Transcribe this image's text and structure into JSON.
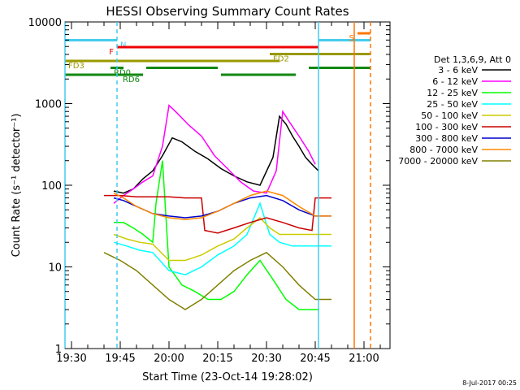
{
  "chart_data": {
    "type": "line",
    "title": "HESSI Observing Summary Count Rates",
    "xlabel": "Start Time (23-Oct-14 19:28:02)",
    "ylabel": "Count Rate (s⁻¹ detector⁻¹)",
    "y_scale": "log",
    "ylim": [
      1,
      10000
    ],
    "xlim": [
      "19:28",
      "21:08"
    ],
    "x_ticks": [
      "19:30",
      "19:45",
      "20:00",
      "20:15",
      "20:30",
      "20:45",
      "21:00"
    ],
    "y_ticks": [
      "1",
      "10",
      "100",
      "1000",
      "10000"
    ],
    "grid": false,
    "legend_position": "right",
    "legend_title": "Det 1,3,6,9, Att 0",
    "footer": "8-Jul-2017 00:25",
    "series": [
      {
        "name": "3 - 6 keV",
        "color": "#000000",
        "x": [
          "19:43",
          "19:46",
          "19:49",
          "19:52",
          "19:55",
          "19:58",
          "20:01",
          "20:04",
          "20:08",
          "20:12",
          "20:16",
          "20:20",
          "20:24",
          "20:28",
          "20:32",
          "20:34",
          "20:36",
          "20:38",
          "20:40",
          "20:42",
          "20:44",
          "20:46"
        ],
        "values": [
          85,
          80,
          90,
          120,
          150,
          230,
          380,
          340,
          260,
          210,
          160,
          130,
          110,
          100,
          220,
          700,
          560,
          400,
          300,
          220,
          180,
          150
        ]
      },
      {
        "name": "6 - 12 keV",
        "color": "#ff00ff",
        "x": [
          "19:43",
          "19:46",
          "19:49",
          "19:52",
          "19:55",
          "19:58",
          "20:00",
          "20:02",
          "20:06",
          "20:10",
          "20:14",
          "20:18",
          "20:22",
          "20:26",
          "20:30",
          "20:33",
          "20:35",
          "20:37",
          "20:40",
          "20:43",
          "20:45"
        ],
        "values": [
          60,
          75,
          90,
          110,
          130,
          300,
          950,
          800,
          550,
          400,
          230,
          160,
          110,
          85,
          80,
          150,
          800,
          600,
          400,
          260,
          180
        ]
      },
      {
        "name": "12 - 25 keV",
        "color": "#00ff00",
        "x": [
          "19:43",
          "19:46",
          "19:49",
          "19:52",
          "19:55",
          "19:56",
          "19:58",
          "20:00",
          "20:04",
          "20:08",
          "20:12",
          "20:16",
          "20:20",
          "20:24",
          "20:28",
          "20:32",
          "20:36",
          "20:40",
          "20:44",
          "20:46"
        ],
        "values": [
          35,
          35,
          30,
          25,
          20,
          60,
          200,
          10,
          6,
          5,
          4,
          4,
          5,
          8,
          12,
          7,
          4,
          3,
          3,
          3
        ]
      },
      {
        "name": "25 - 50 keV",
        "color": "#00ffff",
        "x": [
          "19:43",
          "19:47",
          "19:51",
          "19:55",
          "20:00",
          "20:05",
          "20:10",
          "20:15",
          "20:20",
          "20:24",
          "20:28",
          "20:31",
          "20:34",
          "20:38",
          "20:42",
          "20:46",
          "20:50"
        ],
        "values": [
          20,
          18,
          16,
          15,
          9,
          8,
          10,
          14,
          18,
          25,
          60,
          25,
          20,
          18,
          18,
          18,
          18
        ]
      },
      {
        "name": "50 - 100 keV",
        "color": "#cccc00",
        "x": [
          "19:43",
          "19:47",
          "19:51",
          "19:55",
          "20:00",
          "20:05",
          "20:10",
          "20:15",
          "20:20",
          "20:24",
          "20:28",
          "20:31",
          "20:34",
          "20:38",
          "20:42",
          "20:46",
          "20:50"
        ],
        "values": [
          25,
          22,
          20,
          19,
          12,
          12,
          14,
          18,
          22,
          30,
          40,
          30,
          25,
          25,
          25,
          25,
          25
        ]
      },
      {
        "name": "100 - 300 keV",
        "color": "#cc0000",
        "x": [
          "19:40",
          "19:45",
          "19:50",
          "19:55",
          "20:00",
          "20:05",
          "20:10",
          "20:11",
          "20:15",
          "20:20",
          "20:25",
          "20:30",
          "20:35",
          "20:40",
          "20:44",
          "20:45",
          "20:50"
        ],
        "values": [
          75,
          75,
          72,
          72,
          72,
          70,
          70,
          28,
          26,
          30,
          35,
          40,
          35,
          30,
          28,
          70,
          70
        ]
      },
      {
        "name": "300 - 800 keV",
        "color": "#0000cc",
        "x": [
          "19:43",
          "19:46",
          "19:50",
          "19:55",
          "20:00",
          "20:05",
          "20:10",
          "20:15",
          "20:20",
          "20:25",
          "20:30",
          "20:35",
          "20:40",
          "20:45",
          "20:50"
        ],
        "values": [
          70,
          65,
          55,
          45,
          42,
          40,
          42,
          48,
          60,
          70,
          75,
          65,
          50,
          42,
          42
        ]
      },
      {
        "name": "800 - 7000 keV",
        "color": "#ff8800",
        "x": [
          "19:43",
          "19:46",
          "19:50",
          "19:55",
          "20:00",
          "20:05",
          "20:10",
          "20:15",
          "20:20",
          "20:25",
          "20:30",
          "20:35",
          "20:40",
          "20:45",
          "20:50"
        ],
        "values": [
          80,
          70,
          55,
          45,
          40,
          38,
          40,
          48,
          60,
          75,
          85,
          75,
          55,
          42,
          42
        ]
      },
      {
        "name": "7000 - 20000 keV",
        "color": "#808000",
        "x": [
          "19:40",
          "19:45",
          "19:50",
          "19:55",
          "20:00",
          "20:05",
          "20:10",
          "20:15",
          "20:20",
          "20:25",
          "20:30",
          "20:35",
          "20:40",
          "20:45",
          "20:50"
        ],
        "values": [
          15,
          12,
          9,
          6,
          4,
          3,
          4,
          6,
          9,
          12,
          15,
          10,
          6,
          4,
          4
        ]
      }
    ],
    "overlay_bars": [
      {
        "label": "N",
        "color": "#44ccee",
        "row": 1,
        "segments": [
          [
            "19:28",
            "19:44"
          ],
          [
            "20:46",
            "21:02"
          ]
        ]
      },
      {
        "label": "F",
        "color": "#ee0000",
        "row": 2,
        "segments": [
          [
            "19:44",
            "20:46"
          ]
        ]
      },
      {
        "label": "FD2",
        "color": "#999900",
        "row": 3,
        "segments": [
          [
            "20:31",
            "21:02"
          ]
        ]
      },
      {
        "label": "FD3",
        "color": "#999900",
        "row": 4,
        "segments": [
          [
            "19:28",
            "20:34"
          ]
        ]
      },
      {
        "label": "RD0",
        "color": "#118811",
        "row": 5,
        "segments": [
          [
            "19:42",
            "19:46"
          ],
          [
            "19:53",
            "20:15"
          ],
          [
            "20:43",
            "21:02"
          ]
        ]
      },
      {
        "label": "RD6",
        "color": "#118811",
        "row": 6,
        "segments": [
          [
            "19:28",
            "19:52"
          ],
          [
            "20:16",
            "20:39"
          ]
        ]
      },
      {
        "label": "S",
        "color": "#ff7700",
        "row": 0,
        "segments": [
          [
            "20:58",
            "21:02"
          ]
        ]
      }
    ],
    "vertical_lines": [
      {
        "x": "19:28",
        "color": "#44ccee",
        "style": "solid"
      },
      {
        "x": "19:44",
        "color": "#44ccee",
        "style": "dashed"
      },
      {
        "x": "20:46",
        "color": "#44ccee",
        "style": "solid"
      },
      {
        "x": "20:57",
        "color": "#ff7700",
        "style": "solid"
      },
      {
        "x": "21:02",
        "color": "#ff7700",
        "style": "dashed"
      }
    ]
  }
}
